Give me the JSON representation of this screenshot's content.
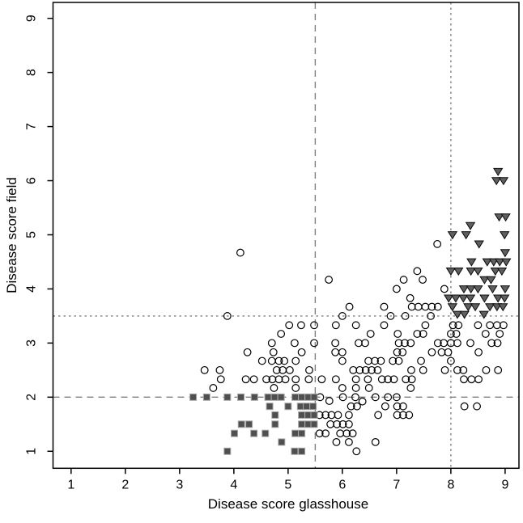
{
  "figure": {
    "background": "#ffffff"
  },
  "chart_data": {
    "type": "scatter",
    "title": "",
    "xlabel": "Disease score glasshouse",
    "ylabel": "Disease score field",
    "xlim": [
      0.667,
      9.255
    ],
    "ylim": [
      0.686,
      9.294
    ],
    "xticks": [
      1,
      2,
      3,
      4,
      5,
      6,
      7,
      8,
      9
    ],
    "yticks": [
      1,
      2,
      3,
      4,
      5,
      6,
      7,
      8,
      9
    ],
    "grid": false,
    "legend": "none",
    "colors": {
      "axis": "#000000",
      "refline": "#808080",
      "circle_stroke": "#000000",
      "square_fill": "#4f4f4f",
      "square_edge": "#a8a8a8",
      "triangle_fill": "#5f5f5f",
      "triangle_edge": "#0a0a0a"
    },
    "reference_lines": [
      {
        "axis": "x",
        "value": 5.5,
        "style": "dashed"
      },
      {
        "axis": "x",
        "value": 8.0,
        "style": "dotted"
      },
      {
        "axis": "y",
        "value": 2.0,
        "style": "dashed"
      },
      {
        "axis": "y",
        "value": 3.5,
        "style": "dotted"
      }
    ],
    "series": [
      {
        "name": "open-circles",
        "marker": "open-circle",
        "points": [
          [
            4.12,
            4.67
          ],
          [
            7.75,
            4.83
          ],
          [
            7.38,
            4.33
          ],
          [
            5.75,
            4.17
          ],
          [
            7.13,
            4.17
          ],
          [
            7.48,
            4.17
          ],
          [
            7.0,
            4.0
          ],
          [
            7.88,
            4.0
          ],
          [
            7.25,
            3.83
          ],
          [
            6.13,
            3.67
          ],
          [
            6.77,
            3.67
          ],
          [
            7.28,
            3.67
          ],
          [
            7.4,
            3.67
          ],
          [
            7.53,
            3.67
          ],
          [
            7.65,
            3.67
          ],
          [
            7.76,
            3.67
          ],
          [
            3.88,
            3.5
          ],
          [
            6.0,
            3.5
          ],
          [
            6.89,
            3.5
          ],
          [
            7.16,
            3.5
          ],
          [
            7.63,
            3.5
          ],
          [
            5.02,
            3.33
          ],
          [
            5.24,
            3.33
          ],
          [
            5.48,
            3.33
          ],
          [
            5.88,
            3.33
          ],
          [
            6.25,
            3.33
          ],
          [
            6.77,
            3.33
          ],
          [
            7.53,
            3.33
          ],
          [
            8.04,
            3.33
          ],
          [
            8.14,
            3.33
          ],
          [
            8.5,
            3.33
          ],
          [
            8.72,
            3.33
          ],
          [
            8.85,
            3.33
          ],
          [
            8.97,
            3.33
          ],
          [
            4.87,
            3.17
          ],
          [
            6.52,
            3.17
          ],
          [
            7.02,
            3.17
          ],
          [
            7.38,
            3.17
          ],
          [
            7.49,
            3.17
          ],
          [
            8.0,
            3.17
          ],
          [
            8.1,
            3.17
          ],
          [
            8.64,
            3.17
          ],
          [
            8.9,
            3.17
          ],
          [
            4.7,
            3.0
          ],
          [
            5.12,
            3.0
          ],
          [
            5.48,
            3.0
          ],
          [
            5.87,
            3.0
          ],
          [
            6.3,
            3.0
          ],
          [
            6.42,
            3.0
          ],
          [
            7.04,
            3.0
          ],
          [
            7.15,
            3.0
          ],
          [
            7.26,
            3.0
          ],
          [
            7.76,
            3.0
          ],
          [
            7.87,
            3.0
          ],
          [
            8.0,
            3.0
          ],
          [
            8.12,
            3.0
          ],
          [
            8.36,
            3.0
          ],
          [
            8.75,
            3.0
          ],
          [
            8.86,
            3.0
          ],
          [
            4.25,
            2.83
          ],
          [
            4.73,
            2.83
          ],
          [
            5.25,
            2.83
          ],
          [
            5.87,
            2.83
          ],
          [
            6.0,
            2.83
          ],
          [
            7.01,
            2.83
          ],
          [
            7.11,
            2.83
          ],
          [
            7.65,
            2.83
          ],
          [
            7.83,
            2.83
          ],
          [
            7.95,
            2.83
          ],
          [
            8.51,
            2.83
          ],
          [
            4.52,
            2.67
          ],
          [
            4.7,
            2.67
          ],
          [
            4.83,
            2.67
          ],
          [
            4.93,
            2.67
          ],
          [
            5.14,
            2.67
          ],
          [
            6.0,
            2.67
          ],
          [
            6.48,
            2.67
          ],
          [
            6.6,
            2.67
          ],
          [
            6.71,
            2.67
          ],
          [
            6.93,
            2.67
          ],
          [
            7.04,
            2.67
          ],
          [
            7.45,
            2.67
          ],
          [
            8.0,
            2.67
          ],
          [
            3.46,
            2.5
          ],
          [
            3.74,
            2.5
          ],
          [
            4.79,
            2.5
          ],
          [
            4.9,
            2.5
          ],
          [
            5.03,
            2.5
          ],
          [
            5.39,
            2.5
          ],
          [
            6.2,
            2.5
          ],
          [
            6.32,
            2.5
          ],
          [
            6.43,
            2.5
          ],
          [
            6.54,
            2.5
          ],
          [
            6.65,
            2.5
          ],
          [
            7.27,
            2.5
          ],
          [
            7.49,
            2.5
          ],
          [
            7.89,
            2.5
          ],
          [
            8.12,
            2.5
          ],
          [
            8.23,
            2.5
          ],
          [
            8.65,
            2.5
          ],
          [
            8.87,
            2.5
          ],
          [
            3.76,
            2.33
          ],
          [
            4.22,
            2.33
          ],
          [
            4.37,
            2.33
          ],
          [
            4.6,
            2.33
          ],
          [
            4.71,
            2.33
          ],
          [
            4.83,
            2.33
          ],
          [
            4.95,
            2.33
          ],
          [
            5.14,
            2.33
          ],
          [
            5.38,
            2.33
          ],
          [
            5.62,
            2.33
          ],
          [
            5.88,
            2.33
          ],
          [
            6.25,
            2.33
          ],
          [
            6.47,
            2.33
          ],
          [
            6.73,
            2.33
          ],
          [
            6.84,
            2.33
          ],
          [
            6.95,
            2.33
          ],
          [
            7.17,
            2.33
          ],
          [
            7.28,
            2.33
          ],
          [
            8.24,
            2.33
          ],
          [
            8.38,
            2.33
          ],
          [
            8.51,
            2.33
          ],
          [
            3.62,
            2.17
          ],
          [
            4.74,
            2.17
          ],
          [
            5.14,
            2.17
          ],
          [
            6.0,
            2.17
          ],
          [
            6.25,
            2.17
          ],
          [
            6.49,
            2.17
          ],
          [
            7.26,
            2.17
          ],
          [
            5.59,
            2.0
          ],
          [
            6.01,
            2.0
          ],
          [
            6.24,
            2.0
          ],
          [
            6.61,
            2.0
          ],
          [
            6.84,
            2.0
          ],
          [
            7.0,
            2.0
          ],
          [
            5.76,
            1.93
          ],
          [
            6.37,
            1.92
          ],
          [
            6.16,
            1.83
          ],
          [
            6.27,
            1.83
          ],
          [
            6.79,
            1.83
          ],
          [
            7.01,
            1.83
          ],
          [
            7.12,
            1.83
          ],
          [
            8.25,
            1.83
          ],
          [
            8.48,
            1.83
          ],
          [
            5.58,
            1.67
          ],
          [
            5.69,
            1.67
          ],
          [
            5.8,
            1.67
          ],
          [
            5.92,
            1.67
          ],
          [
            6.12,
            1.67
          ],
          [
            6.66,
            1.67
          ],
          [
            7.01,
            1.67
          ],
          [
            7.12,
            1.67
          ],
          [
            7.23,
            1.67
          ],
          [
            5.78,
            1.5
          ],
          [
            5.9,
            1.5
          ],
          [
            6.01,
            1.5
          ],
          [
            6.12,
            1.5
          ],
          [
            5.58,
            1.33
          ],
          [
            5.69,
            1.33
          ],
          [
            5.96,
            1.33
          ],
          [
            6.08,
            1.33
          ],
          [
            6.19,
            1.33
          ],
          [
            5.89,
            1.17
          ],
          [
            6.12,
            1.17
          ],
          [
            6.61,
            1.17
          ],
          [
            6.26,
            1.0
          ]
        ]
      },
      {
        "name": "filled-squares",
        "marker": "filled-square",
        "points": [
          [
            3.25,
            2.0
          ],
          [
            3.5,
            2.0
          ],
          [
            3.88,
            2.0
          ],
          [
            4.13,
            2.0
          ],
          [
            4.38,
            2.0
          ],
          [
            4.63,
            2.0
          ],
          [
            4.75,
            2.0
          ],
          [
            4.87,
            2.0
          ],
          [
            5.13,
            2.0
          ],
          [
            5.25,
            2.0
          ],
          [
            5.37,
            2.0
          ],
          [
            5.48,
            2.0
          ],
          [
            4.66,
            1.83
          ],
          [
            5.0,
            1.83
          ],
          [
            5.23,
            1.83
          ],
          [
            5.34,
            1.83
          ],
          [
            5.46,
            1.83
          ],
          [
            4.76,
            1.67
          ],
          [
            5.25,
            1.67
          ],
          [
            5.37,
            1.67
          ],
          [
            5.48,
            1.67
          ],
          [
            4.14,
            1.5
          ],
          [
            4.28,
            1.5
          ],
          [
            4.76,
            1.5
          ],
          [
            5.25,
            1.5
          ],
          [
            5.37,
            1.5
          ],
          [
            5.48,
            1.5
          ],
          [
            4.01,
            1.33
          ],
          [
            4.37,
            1.33
          ],
          [
            4.58,
            1.33
          ],
          [
            5.13,
            1.33
          ],
          [
            5.25,
            1.33
          ],
          [
            4.88,
            1.17
          ],
          [
            3.88,
            1.0
          ],
          [
            5.12,
            1.0
          ],
          [
            5.25,
            1.0
          ]
        ]
      },
      {
        "name": "filled-triangles-down",
        "marker": "filled-triangle-down",
        "points": [
          [
            8.87,
            6.17
          ],
          [
            8.84,
            6.0
          ],
          [
            8.97,
            6.0
          ],
          [
            8.89,
            5.33
          ],
          [
            9.01,
            5.33
          ],
          [
            8.36,
            5.17
          ],
          [
            8.03,
            5.0
          ],
          [
            8.28,
            5.0
          ],
          [
            8.99,
            5.0
          ],
          [
            8.52,
            4.83
          ],
          [
            9.0,
            4.67
          ],
          [
            8.38,
            4.5
          ],
          [
            8.67,
            4.5
          ],
          [
            8.79,
            4.5
          ],
          [
            8.9,
            4.5
          ],
          [
            9.02,
            4.5
          ],
          [
            8.0,
            4.33
          ],
          [
            8.14,
            4.33
          ],
          [
            8.37,
            4.33
          ],
          [
            8.5,
            4.33
          ],
          [
            8.82,
            4.33
          ],
          [
            8.94,
            4.33
          ],
          [
            8.62,
            4.17
          ],
          [
            8.74,
            4.17
          ],
          [
            8.24,
            4.0
          ],
          [
            8.37,
            4.0
          ],
          [
            8.5,
            4.0
          ],
          [
            8.77,
            4.0
          ],
          [
            9.0,
            4.0
          ],
          [
            7.96,
            3.83
          ],
          [
            8.09,
            3.83
          ],
          [
            8.23,
            3.83
          ],
          [
            8.36,
            3.83
          ],
          [
            8.62,
            3.83
          ],
          [
            8.87,
            3.83
          ],
          [
            8.99,
            3.83
          ],
          [
            8.03,
            3.67
          ],
          [
            8.32,
            3.67
          ],
          [
            8.45,
            3.67
          ],
          [
            8.72,
            3.67
          ],
          [
            8.85,
            3.67
          ],
          [
            8.96,
            3.67
          ],
          [
            8.12,
            3.53
          ],
          [
            8.25,
            3.53
          ],
          [
            8.61,
            3.53
          ]
        ]
      }
    ]
  }
}
